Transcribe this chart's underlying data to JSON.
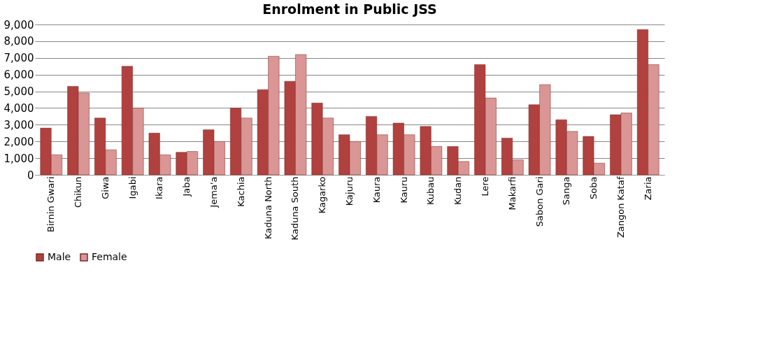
{
  "chart_data": {
    "type": "bar",
    "title": "Enrolment in Public JSS",
    "categories": [
      "Birnin Gwari",
      "Chikun",
      "Giwa",
      "Igabi",
      "Ikara",
      "Jaba",
      "Jema'a",
      "Kachia",
      "Kaduna North",
      "Kaduna South",
      "Kagarko",
      "Kajuru",
      "Kaura",
      "Kauru",
      "Kubau",
      "Kudan",
      "Lere",
      "Makarfi",
      "Sabon Gari",
      "Sanga",
      "Soba",
      "Zangon Kataf",
      "Zaria"
    ],
    "series": [
      {
        "name": "Male",
        "color": "#b0413e",
        "values": [
          2800,
          5300,
          3400,
          6500,
          2500,
          1350,
          2700,
          4000,
          5100,
          5600,
          4300,
          2400,
          3500,
          3100,
          2900,
          1700,
          6600,
          2200,
          4200,
          3300,
          2300,
          3600,
          8700
        ]
      },
      {
        "name": "Female",
        "color": "#d99694",
        "values": [
          1200,
          4900,
          1500,
          4000,
          1200,
          1400,
          2000,
          3400,
          7100,
          7200,
          3400,
          2000,
          2400,
          2400,
          1700,
          800,
          4600,
          900,
          5400,
          2600,
          700,
          3700,
          6600
        ]
      }
    ],
    "ylim": [
      0,
      9000
    ],
    "yticks": [
      0,
      {
        "value": 1000,
        "label": "1,000"
      },
      {
        "value": 2000,
        "label": "2,000"
      },
      {
        "value": 3000,
        "label": "3,000"
      },
      {
        "value": 4000,
        "label": "4,000"
      },
      {
        "value": 5000,
        "label": "5,000"
      },
      {
        "value": 6000,
        "label": "6,000"
      },
      {
        "value": 7000,
        "label": "7,000"
      },
      {
        "value": 8000,
        "label": "8,000"
      },
      {
        "value": 9000,
        "label": "9,000"
      }
    ],
    "grid": "y",
    "legend": "bottom"
  }
}
